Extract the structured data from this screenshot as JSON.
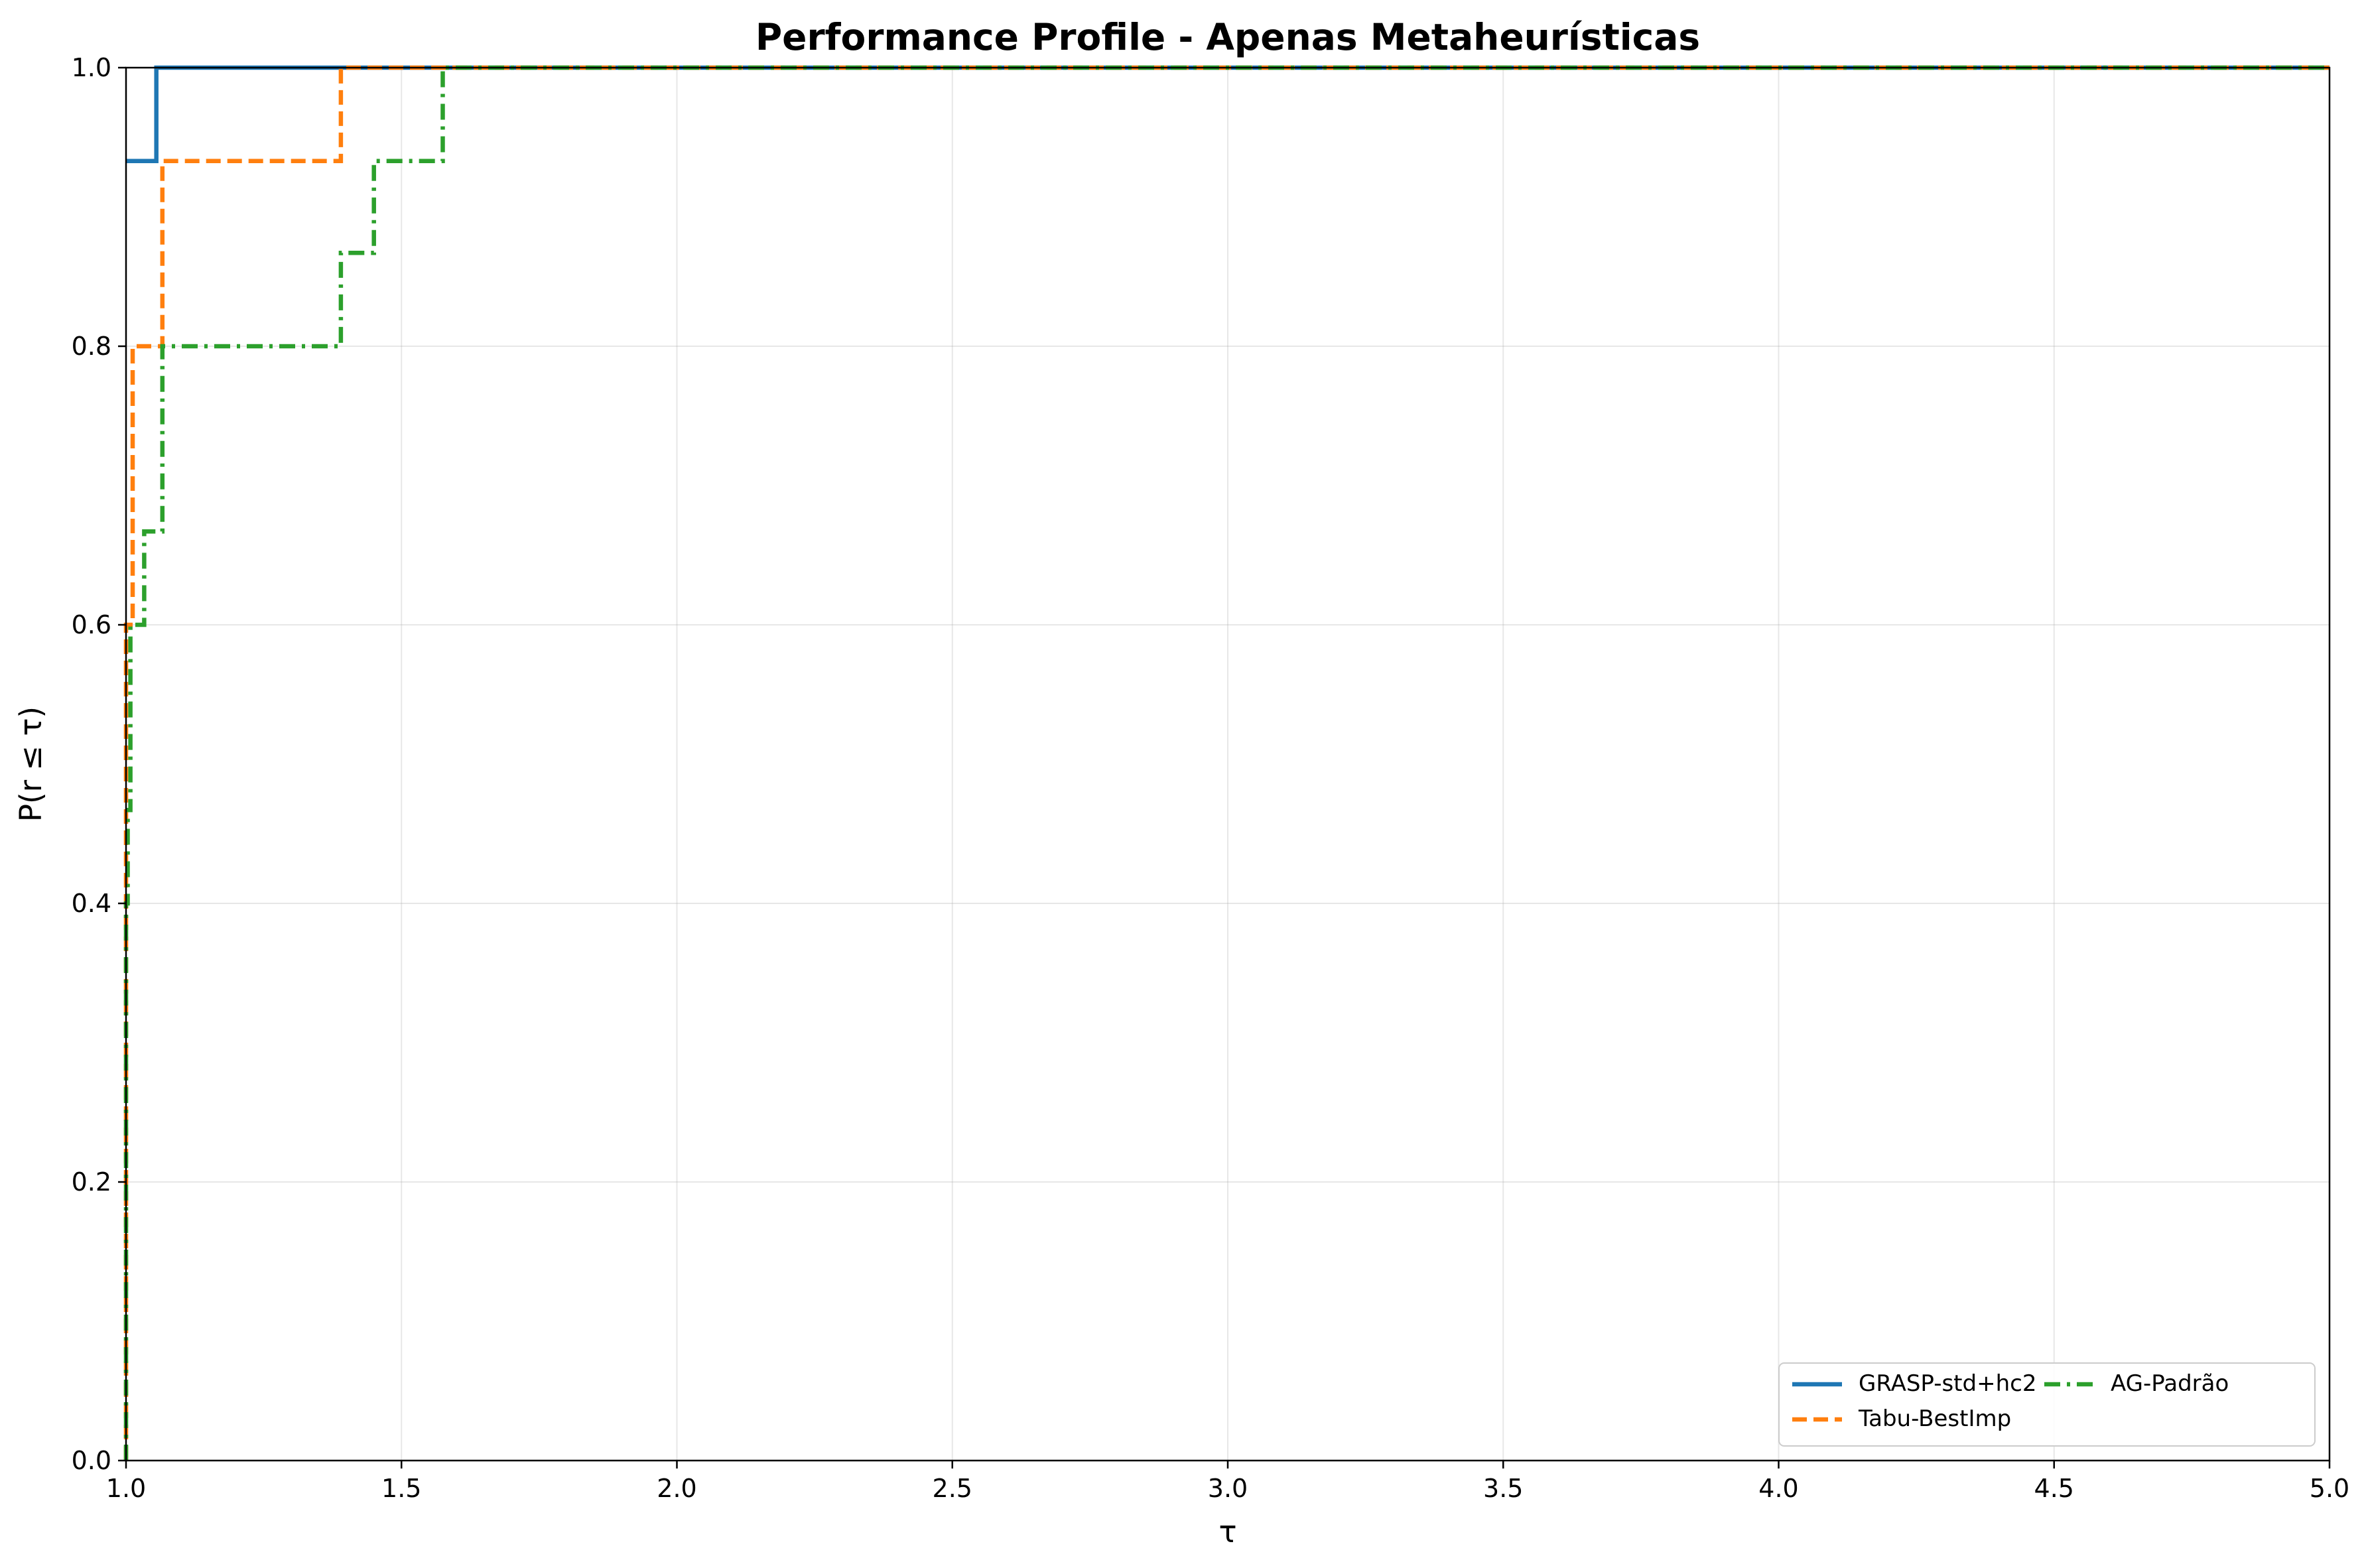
{
  "chart_data": {
    "type": "line",
    "step": true,
    "title": "Performance Profile - Apenas Metaheurísticas",
    "xlabel": "τ",
    "ylabel": "P(r ≤ τ)",
    "xlim": [
      1.0,
      5.0
    ],
    "ylim": [
      0.0,
      1.0
    ],
    "xticks": [
      "1.0",
      "1.5",
      "2.0",
      "2.5",
      "3.0",
      "3.5",
      "4.0",
      "4.5",
      "5.0"
    ],
    "yticks": [
      "0.0",
      "0.2",
      "0.4",
      "0.6",
      "0.8",
      "1.0"
    ],
    "grid": true,
    "legend": {
      "location": "lower right",
      "columns": 2
    },
    "series": [
      {
        "name": "GRASP-std+hc2",
        "color": "#1f77b4",
        "linestyle": "solid",
        "x": [
          1.0,
          1.055,
          1.055,
          5.0
        ],
        "y": [
          0.933,
          0.933,
          1.0,
          1.0
        ]
      },
      {
        "name": "Tabu-BestImp",
        "color": "#ff7f0e",
        "linestyle": "dashed",
        "x": [
          1.0,
          1.0,
          1.012,
          1.012,
          1.066,
          1.066,
          1.39,
          1.39,
          5.0
        ],
        "y": [
          0.0,
          0.6,
          0.6,
          0.8,
          0.8,
          0.933,
          0.933,
          1.0,
          1.0
        ]
      },
      {
        "name": "AG-Padrão",
        "color": "#2ca02c",
        "linestyle": "dashdot",
        "x": [
          1.0,
          1.0,
          1.003,
          1.003,
          1.008,
          1.008,
          1.033,
          1.033,
          1.066,
          1.066,
          1.39,
          1.39,
          1.45,
          1.45,
          1.575,
          1.575,
          5.0
        ],
        "y": [
          0.0,
          0.4,
          0.4,
          0.467,
          0.467,
          0.6,
          0.6,
          0.667,
          0.667,
          0.8,
          0.8,
          0.867,
          0.867,
          0.933,
          0.933,
          1.0,
          1.0
        ]
      }
    ]
  }
}
